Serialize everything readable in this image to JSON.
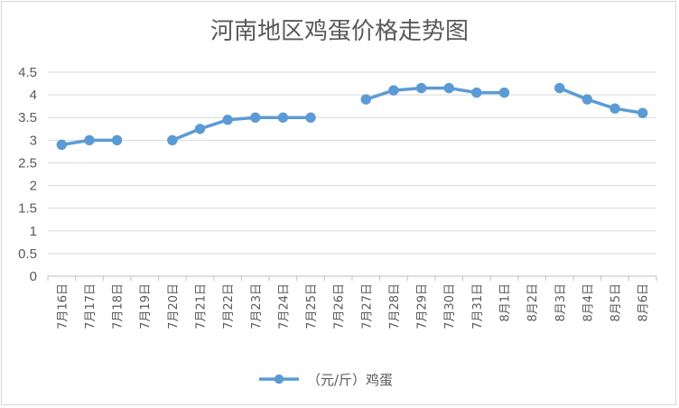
{
  "chart_data": {
    "type": "line",
    "title": "河南地区鸡蛋价格走势图",
    "categories": [
      "7月16日",
      "7月17日",
      "7月18日",
      "7月19日",
      "7月20日",
      "7月21日",
      "7月22日",
      "7月23日",
      "7月24日",
      "7月25日",
      "7月26日",
      "7月27日",
      "7月28日",
      "7月29日",
      "7月30日",
      "7月31日",
      "8月1日",
      "8月2日",
      "8月3日",
      "8月4日",
      "8月5日",
      "8月6日"
    ],
    "series": [
      {
        "name": "（元/斤）鸡蛋",
        "color": "#5b9bd5",
        "values": [
          2.9,
          3.0,
          3.0,
          null,
          3.0,
          3.25,
          3.45,
          3.5,
          3.5,
          3.5,
          null,
          3.9,
          4.1,
          4.15,
          4.15,
          4.05,
          4.05,
          null,
          4.15,
          3.9,
          3.7,
          3.6
        ]
      }
    ],
    "yticks": [
      "0",
      "0.5",
      "1",
      "1.5",
      "2",
      "2.5",
      "3",
      "3.5",
      "4",
      "4.5"
    ],
    "ylim": [
      0,
      4.5
    ],
    "grid": true,
    "legend": "bottom"
  }
}
